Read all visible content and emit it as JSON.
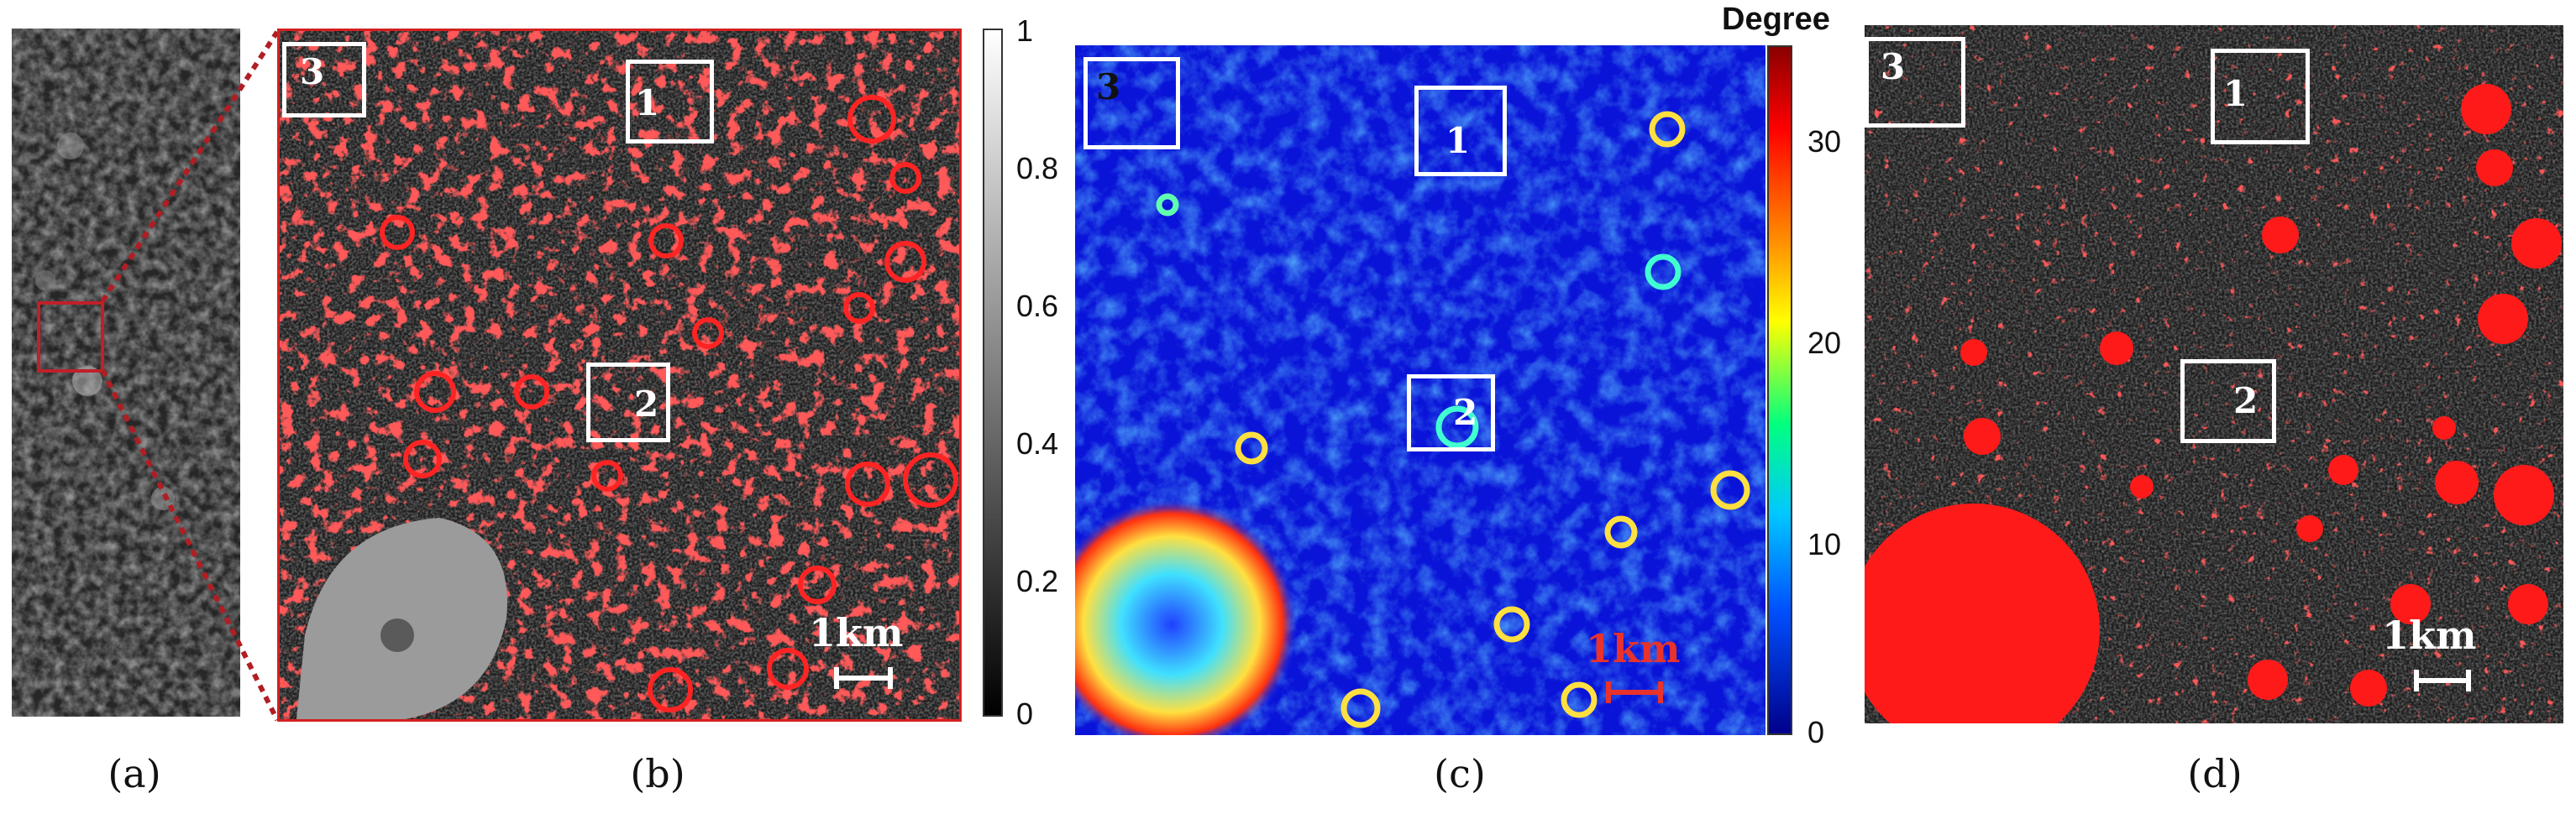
{
  "panels": [
    {
      "id": "a",
      "caption": "(a)"
    },
    {
      "id": "b",
      "caption": "(b)",
      "scale": "1km",
      "rois": [
        {
          "label": "3"
        },
        {
          "label": "1"
        },
        {
          "label": "2"
        }
      ]
    },
    {
      "id": "c",
      "caption": "(c)",
      "scale": "1km",
      "rois": [
        {
          "label": "3"
        },
        {
          "label": "1"
        },
        {
          "label": "2"
        }
      ]
    },
    {
      "id": "d",
      "caption": "(d)",
      "scale": "1km",
      "rois": [
        {
          "label": "3"
        },
        {
          "label": "1"
        },
        {
          "label": "2"
        }
      ]
    }
  ],
  "colorbar_gray": {
    "ticks": [
      "1",
      "0.8",
      "0.6",
      "0.4",
      "0.2",
      "0"
    ]
  },
  "colorbar_jet": {
    "title": "Degree",
    "ticks": [
      "30",
      "20",
      "10",
      "0"
    ]
  },
  "colors": {
    "overlay_red": "#ff1a1a",
    "roi_box": "#ffffff",
    "scale_red": "#e8322b"
  }
}
